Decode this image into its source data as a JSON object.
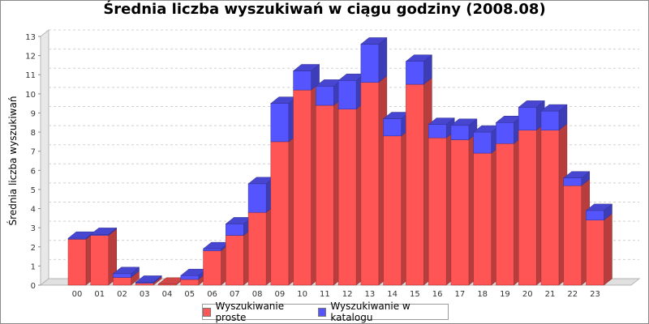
{
  "chart_data": {
    "type": "bar",
    "stacked": true,
    "title": "Średnia liczba wyszukiwań w ciągu godziny (2008.08)",
    "xlabel": "",
    "ylabel": "Średnia liczba wyszukiwań",
    "ylim": [
      0,
      13
    ],
    "yticks": [
      0,
      1,
      2,
      3,
      4,
      5,
      6,
      7,
      8,
      9,
      10,
      11,
      12,
      13
    ],
    "grid": true,
    "legend_position": "bottom",
    "categories": [
      "00",
      "01",
      "02",
      "03",
      "04",
      "05",
      "06",
      "07",
      "08",
      "09",
      "10",
      "11",
      "12",
      "13",
      "14",
      "15",
      "16",
      "17",
      "18",
      "19",
      "20",
      "21",
      "22",
      "23"
    ],
    "series": [
      {
        "name": "Wyszukiwanie proste",
        "color": "#ff5555",
        "values": [
          2.4,
          2.6,
          0.4,
          0.1,
          0.05,
          0.3,
          1.8,
          2.6,
          3.8,
          7.5,
          10.2,
          9.4,
          9.2,
          10.6,
          7.8,
          10.5,
          7.7,
          7.6,
          6.9,
          7.4,
          8.1,
          8.1,
          5.2,
          3.4
        ]
      },
      {
        "name": "Wyszukiwanie w katalogu",
        "color": "#5555ff",
        "values": [
          0.05,
          0.05,
          0.2,
          0.05,
          0.0,
          0.2,
          0.1,
          0.6,
          1.5,
          2.0,
          1.0,
          1.0,
          1.5,
          2.0,
          0.9,
          1.2,
          0.7,
          0.75,
          1.1,
          1.1,
          1.2,
          1.0,
          0.4,
          0.5
        ]
      }
    ]
  }
}
